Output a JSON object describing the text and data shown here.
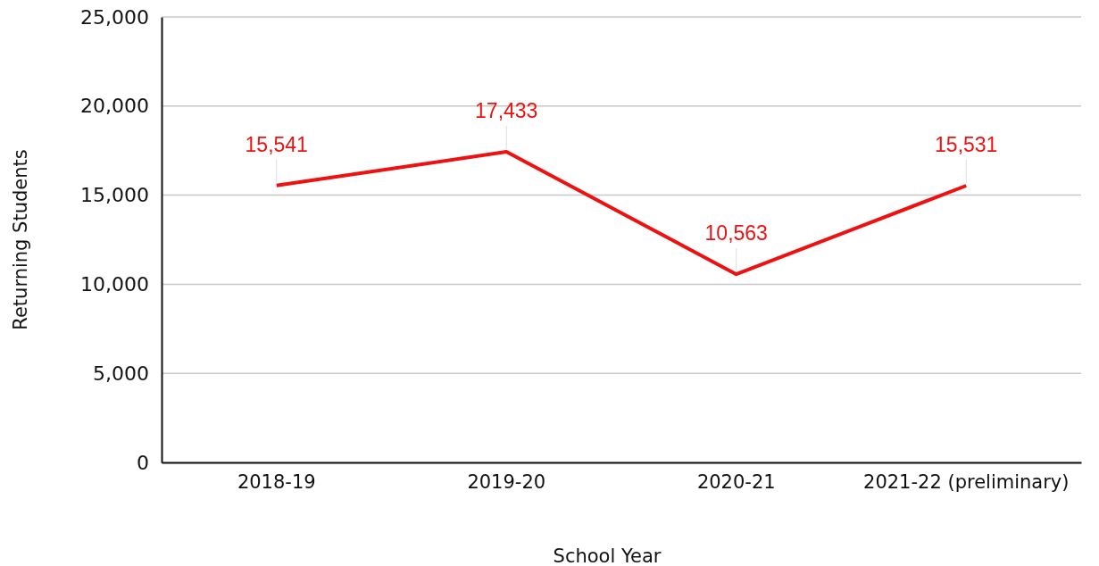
{
  "chart_data": {
    "type": "line",
    "xlabel": "School Year",
    "ylabel": "Returning Students",
    "categories": [
      "2018-19",
      "2019-20",
      "2020-21",
      "2021-22 (preliminary)"
    ],
    "series": [
      {
        "color": "#ee1111",
        "values": [
          15541,
          17433,
          10563,
          15531
        ],
        "value_labels": [
          "15,541",
          "17,433",
          "10,563",
          "15,531"
        ]
      }
    ],
    "ylim": [
      0,
      25000
    ],
    "yticks": [
      {
        "value": 0,
        "label": "0"
      },
      {
        "value": 5000,
        "label": "5,000"
      },
      {
        "value": 10000,
        "label": "10,000"
      },
      {
        "value": 15000,
        "label": "15,000"
      },
      {
        "value": 20000,
        "label": "20,000"
      },
      {
        "value": 25000,
        "label": "25,000"
      }
    ],
    "grid": "y",
    "marker": "none",
    "line_style": "solid"
  }
}
